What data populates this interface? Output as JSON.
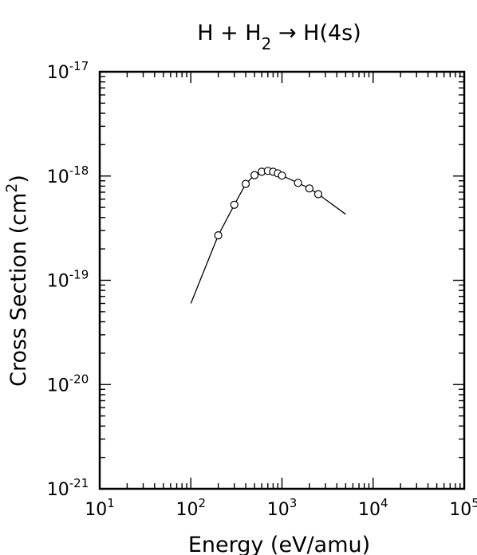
{
  "chart_data": {
    "type": "line",
    "title": {
      "parts": [
        {
          "text": "H + H",
          "sub": false
        },
        {
          "text": "2",
          "sub": true
        },
        {
          "text": " → H(4s)",
          "sub": false
        }
      ]
    },
    "xlabel": "Energy (eV/amu)",
    "ylabel": {
      "prefix": "Cross Section (cm",
      "sup": "2",
      "suffix": ")"
    },
    "x_scale": "log",
    "y_scale": "log",
    "xlim": [
      10,
      100000
    ],
    "ylim": [
      1e-21,
      1e-17
    ],
    "x_ticks": [
      {
        "value": 10,
        "base": "10",
        "exp": "1"
      },
      {
        "value": 100,
        "base": "10",
        "exp": "2"
      },
      {
        "value": 1000,
        "base": "10",
        "exp": "3"
      },
      {
        "value": 10000,
        "base": "10",
        "exp": "4"
      },
      {
        "value": 100000,
        "base": "10",
        "exp": "5"
      }
    ],
    "y_ticks": [
      {
        "value": 1e-21,
        "base": "10",
        "exp": "-21"
      },
      {
        "value": 1e-20,
        "base": "10",
        "exp": "-20"
      },
      {
        "value": 1e-19,
        "base": "10",
        "exp": "-19"
      },
      {
        "value": 1e-18,
        "base": "10",
        "exp": "-18"
      },
      {
        "value": 1e-17,
        "base": "10",
        "exp": "-17"
      }
    ],
    "grid": false,
    "series": [
      {
        "style": "line",
        "x": [
          100,
          200,
          300,
          400,
          500,
          600,
          700,
          800,
          900,
          1000,
          1500,
          2000,
          2500,
          5000
        ],
        "y": [
          6e-20,
          2.7e-19,
          5.3e-19,
          8.4e-19,
          1.02e-18,
          1.1e-18,
          1.12e-18,
          1.1e-18,
          1.06e-18,
          1.01e-18,
          8.6e-19,
          7.6e-19,
          6.7e-19,
          4.3e-19
        ]
      },
      {
        "style": "markers",
        "marker": "circle",
        "x": [
          200,
          300,
          400,
          500,
          600,
          700,
          800,
          900,
          1000,
          1500,
          2000,
          2500
        ],
        "y": [
          2.7e-19,
          5.3e-19,
          8.4e-19,
          1.02e-18,
          1.1e-18,
          1.12e-18,
          1.1e-18,
          1.06e-18,
          1.01e-18,
          8.6e-19,
          7.6e-19,
          6.7e-19
        ]
      }
    ]
  }
}
